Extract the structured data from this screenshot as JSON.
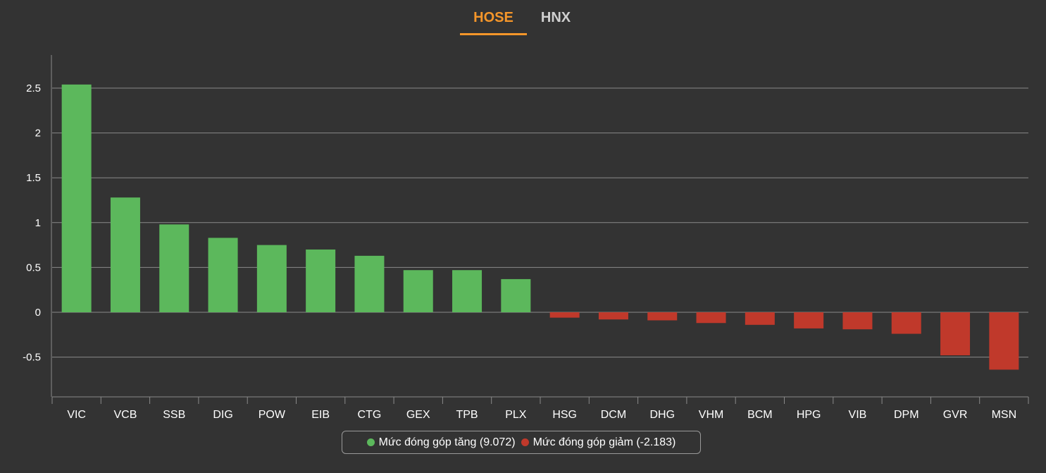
{
  "tabs": [
    {
      "label": "HOSE",
      "active": true
    },
    {
      "label": "HNX",
      "active": false
    }
  ],
  "colors": {
    "accent": "#f5962a",
    "positive": "#5cb85c",
    "negative": "#c0392b",
    "background": "#333333",
    "grid": "#8a8a8a",
    "text": "#ffffff"
  },
  "legend": {
    "increase_label": "Mức đóng góp tăng (9.072)",
    "decrease_label": "Mức đóng góp giảm (-2.183)"
  },
  "chart_data": {
    "type": "bar",
    "categories": [
      "VIC",
      "VCB",
      "SSB",
      "DIG",
      "POW",
      "EIB",
      "CTG",
      "GEX",
      "TPB",
      "PLX",
      "HSG",
      "DCM",
      "DHG",
      "VHM",
      "BCM",
      "HPG",
      "VIB",
      "DPM",
      "GVR",
      "MSN"
    ],
    "values": [
      2.54,
      1.28,
      0.98,
      0.83,
      0.75,
      0.7,
      0.63,
      0.47,
      0.47,
      0.37,
      -0.06,
      -0.08,
      -0.09,
      -0.12,
      -0.14,
      -0.18,
      -0.19,
      -0.24,
      -0.48,
      -0.64
    ],
    "yticks": [
      2.5,
      2,
      1.5,
      1,
      0.5,
      0,
      -0.5
    ],
    "ytick_labels": [
      "2.5",
      "2",
      "1.5",
      "1",
      "0.5",
      "0",
      "-0.5"
    ],
    "ylim": [
      -0.95,
      2.9
    ],
    "grid": true,
    "legend_position": "bottom",
    "title": "",
    "xlabel": "",
    "ylabel": ""
  }
}
